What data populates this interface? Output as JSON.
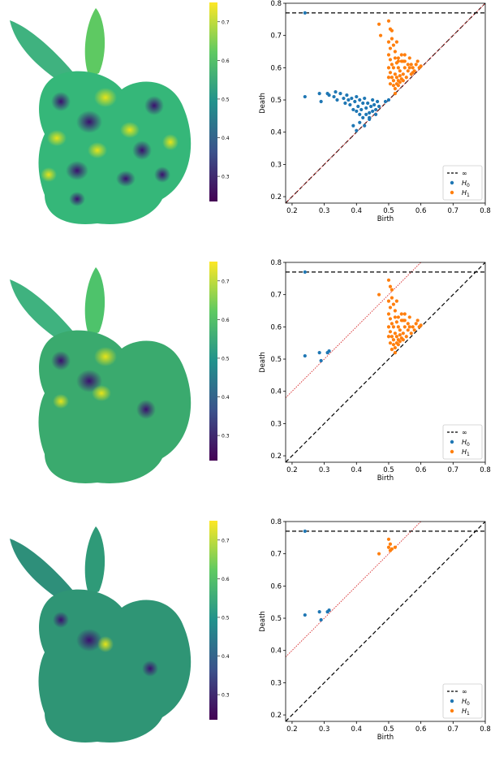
{
  "colorbar": {
    "ticks": [
      "0.3",
      "0.4",
      "0.5",
      "0.6",
      "0.7"
    ],
    "tick_values": [
      0.3,
      0.4,
      0.5,
      0.6,
      0.7
    ],
    "range": [
      0.235,
      0.75
    ],
    "colors": [
      "#440154",
      "#3b528b",
      "#21918c",
      "#5ec962",
      "#fde725"
    ]
  },
  "chart_data": [
    {
      "type": "scatter",
      "xlabel": "Birth",
      "ylabel": "Death",
      "xlim": [
        0.18,
        0.8
      ],
      "ylim": [
        0.18,
        0.8
      ],
      "xticks": [
        "0.2",
        "0.3",
        "0.4",
        "0.5",
        "0.6",
        "0.7",
        "0.8"
      ],
      "yticks": [
        "0.2",
        "0.3",
        "0.4",
        "0.5",
        "0.6",
        "0.7",
        "0.8"
      ],
      "infinity_line": 0.77,
      "threshold_line": {
        "color": "#d62728",
        "offset": 0.0
      },
      "legend": {
        "position": "lower-right",
        "entries": [
          "∞",
          "H0",
          "H1"
        ]
      },
      "series": [
        {
          "name": "H0",
          "color": "#1f77b4",
          "points": [
            [
              0.24,
              0.77
            ],
            [
              0.24,
              0.51
            ],
            [
              0.285,
              0.52
            ],
            [
              0.29,
              0.495
            ],
            [
              0.31,
              0.52
            ],
            [
              0.315,
              0.515
            ],
            [
              0.33,
              0.51
            ],
            [
              0.335,
              0.525
            ],
            [
              0.34,
              0.5
            ],
            [
              0.35,
              0.52
            ],
            [
              0.36,
              0.505
            ],
            [
              0.365,
              0.49
            ],
            [
              0.37,
              0.515
            ],
            [
              0.375,
              0.5
            ],
            [
              0.38,
              0.485
            ],
            [
              0.385,
              0.505
            ],
            [
              0.39,
              0.47
            ],
            [
              0.395,
              0.495
            ],
            [
              0.4,
              0.51
            ],
            [
              0.4,
              0.465
            ],
            [
              0.405,
              0.48
            ],
            [
              0.41,
              0.5
            ],
            [
              0.41,
              0.455
            ],
            [
              0.415,
              0.47
            ],
            [
              0.42,
              0.49
            ],
            [
              0.42,
              0.445
            ],
            [
              0.425,
              0.505
            ],
            [
              0.43,
              0.475
            ],
            [
              0.43,
              0.455
            ],
            [
              0.435,
              0.49
            ],
            [
              0.44,
              0.46
            ],
            [
              0.44,
              0.445
            ],
            [
              0.445,
              0.48
            ],
            [
              0.45,
              0.5
            ],
            [
              0.45,
              0.465
            ],
            [
              0.455,
              0.485
            ],
            [
              0.46,
              0.47
            ],
            [
              0.465,
              0.495
            ],
            [
              0.47,
              0.48
            ],
            [
              0.39,
              0.42
            ],
            [
              0.4,
              0.405
            ],
            [
              0.41,
              0.43
            ],
            [
              0.425,
              0.42
            ],
            [
              0.44,
              0.44
            ],
            [
              0.46,
              0.455
            ],
            [
              0.49,
              0.495
            ],
            [
              0.5,
              0.5
            ]
          ]
        },
        {
          "name": "H1",
          "color": "#ff7f0e",
          "points": [
            [
              0.47,
              0.735
            ],
            [
              0.475,
              0.7
            ],
            [
              0.5,
              0.745
            ],
            [
              0.505,
              0.72
            ],
            [
              0.51,
              0.715
            ],
            [
              0.5,
              0.68
            ],
            [
              0.505,
              0.66
            ],
            [
              0.51,
              0.69
            ],
            [
              0.515,
              0.67
            ],
            [
              0.52,
              0.65
            ],
            [
              0.525,
              0.68
            ],
            [
              0.5,
              0.64
            ],
            [
              0.505,
              0.625
            ],
            [
              0.51,
              0.61
            ],
            [
              0.515,
              0.6
            ],
            [
              0.52,
              0.63
            ],
            [
              0.525,
              0.615
            ],
            [
              0.53,
              0.6
            ],
            [
              0.535,
              0.59
            ],
            [
              0.54,
              0.62
            ],
            [
              0.505,
              0.585
            ],
            [
              0.51,
              0.57
            ],
            [
              0.515,
              0.56
            ],
            [
              0.52,
              0.58
            ],
            [
              0.525,
              0.57
            ],
            [
              0.53,
              0.56
            ],
            [
              0.535,
              0.575
            ],
            [
              0.54,
              0.565
            ],
            [
              0.545,
              0.58
            ],
            [
              0.55,
              0.6
            ],
            [
              0.515,
              0.545
            ],
            [
              0.52,
              0.535
            ],
            [
              0.525,
              0.55
            ],
            [
              0.53,
              0.545
            ],
            [
              0.535,
              0.555
            ],
            [
              0.545,
              0.56
            ],
            [
              0.555,
              0.57
            ],
            [
              0.56,
              0.59
            ],
            [
              0.565,
              0.6
            ],
            [
              0.57,
              0.58
            ],
            [
              0.575,
              0.6
            ],
            [
              0.58,
              0.59
            ],
            [
              0.585,
              0.61
            ],
            [
              0.59,
              0.62
            ],
            [
              0.595,
              0.6
            ],
            [
              0.6,
              0.605
            ],
            [
              0.545,
              0.62
            ],
            [
              0.55,
              0.64
            ],
            [
              0.56,
              0.61
            ],
            [
              0.5,
              0.6
            ],
            [
              0.5,
              0.57
            ],
            [
              0.505,
              0.55
            ],
            [
              0.53,
              0.63
            ],
            [
              0.54,
              0.64
            ],
            [
              0.55,
              0.62
            ],
            [
              0.565,
              0.63
            ],
            [
              0.57,
              0.61
            ],
            [
              0.575,
              0.585
            ],
            [
              0.53,
              0.62
            ],
            [
              0.52,
              0.52
            ]
          ]
        }
      ]
    },
    {
      "type": "scatter",
      "xlabel": "Birth",
      "ylabel": "Death",
      "xlim": [
        0.18,
        0.8
      ],
      "ylim": [
        0.18,
        0.8
      ],
      "xticks": [
        "0.2",
        "0.3",
        "0.4",
        "0.5",
        "0.6",
        "0.7",
        "0.8"
      ],
      "yticks": [
        "0.2",
        "0.3",
        "0.4",
        "0.5",
        "0.6",
        "0.7",
        "0.8"
      ],
      "infinity_line": 0.77,
      "threshold_line": {
        "color": "#d62728",
        "offset": 0.2
      },
      "legend": {
        "position": "lower-right",
        "entries": [
          "∞",
          "H0",
          "H1"
        ]
      },
      "series": [
        {
          "name": "H0",
          "color": "#1f77b4",
          "points": [
            [
              0.24,
              0.77
            ],
            [
              0.24,
              0.51
            ],
            [
              0.285,
              0.52
            ],
            [
              0.29,
              0.495
            ],
            [
              0.31,
              0.52
            ],
            [
              0.315,
              0.525
            ]
          ]
        },
        {
          "name": "H1",
          "color": "#ff7f0e",
          "points": [
            [
              0.47,
              0.7
            ],
            [
              0.5,
              0.745
            ],
            [
              0.505,
              0.725
            ],
            [
              0.51,
              0.715
            ],
            [
              0.5,
              0.68
            ],
            [
              0.505,
              0.66
            ],
            [
              0.51,
              0.69
            ],
            [
              0.515,
              0.67
            ],
            [
              0.52,
              0.65
            ],
            [
              0.525,
              0.68
            ],
            [
              0.5,
              0.64
            ],
            [
              0.505,
              0.625
            ],
            [
              0.51,
              0.61
            ],
            [
              0.515,
              0.6
            ],
            [
              0.52,
              0.63
            ],
            [
              0.525,
              0.615
            ],
            [
              0.53,
              0.6
            ],
            [
              0.535,
              0.59
            ],
            [
              0.54,
              0.62
            ],
            [
              0.505,
              0.585
            ],
            [
              0.51,
              0.57
            ],
            [
              0.515,
              0.56
            ],
            [
              0.52,
              0.58
            ],
            [
              0.525,
              0.57
            ],
            [
              0.53,
              0.56
            ],
            [
              0.535,
              0.575
            ],
            [
              0.54,
              0.565
            ],
            [
              0.545,
              0.58
            ],
            [
              0.55,
              0.6
            ],
            [
              0.515,
              0.545
            ],
            [
              0.52,
              0.535
            ],
            [
              0.525,
              0.55
            ],
            [
              0.53,
              0.545
            ],
            [
              0.535,
              0.555
            ],
            [
              0.545,
              0.56
            ],
            [
              0.555,
              0.57
            ],
            [
              0.56,
              0.59
            ],
            [
              0.565,
              0.6
            ],
            [
              0.57,
              0.58
            ],
            [
              0.575,
              0.6
            ],
            [
              0.58,
              0.59
            ],
            [
              0.585,
              0.61
            ],
            [
              0.59,
              0.62
            ],
            [
              0.595,
              0.6
            ],
            [
              0.6,
              0.605
            ],
            [
              0.545,
              0.62
            ],
            [
              0.55,
              0.64
            ],
            [
              0.56,
              0.61
            ],
            [
              0.5,
              0.6
            ],
            [
              0.5,
              0.57
            ],
            [
              0.505,
              0.55
            ],
            [
              0.53,
              0.63
            ],
            [
              0.54,
              0.64
            ],
            [
              0.55,
              0.62
            ],
            [
              0.565,
              0.63
            ],
            [
              0.52,
              0.52
            ],
            [
              0.51,
              0.53
            ]
          ]
        }
      ]
    },
    {
      "type": "scatter",
      "xlabel": "Birth",
      "ylabel": "Death",
      "xlim": [
        0.18,
        0.8
      ],
      "ylim": [
        0.18,
        0.8
      ],
      "xticks": [
        "0.2",
        "0.3",
        "0.4",
        "0.5",
        "0.6",
        "0.7",
        "0.8"
      ],
      "yticks": [
        "0.2",
        "0.3",
        "0.4",
        "0.5",
        "0.6",
        "0.7",
        "0.8"
      ],
      "infinity_line": 0.77,
      "threshold_line": {
        "color": "#d62728",
        "offset": 0.2
      },
      "legend": {
        "position": "lower-right",
        "entries": [
          "∞",
          "H0",
          "H1"
        ]
      },
      "series": [
        {
          "name": "H0",
          "color": "#1f77b4",
          "points": [
            [
              0.24,
              0.77
            ],
            [
              0.24,
              0.51
            ],
            [
              0.285,
              0.52
            ],
            [
              0.29,
              0.495
            ],
            [
              0.31,
              0.52
            ],
            [
              0.315,
              0.525
            ]
          ]
        },
        {
          "name": "H1",
          "color": "#ff7f0e",
          "points": [
            [
              0.47,
              0.7
            ],
            [
              0.5,
              0.745
            ],
            [
              0.505,
              0.73
            ],
            [
              0.5,
              0.72
            ],
            [
              0.51,
              0.715
            ],
            [
              0.505,
              0.71
            ],
            [
              0.52,
              0.72
            ]
          ]
        }
      ]
    }
  ]
}
